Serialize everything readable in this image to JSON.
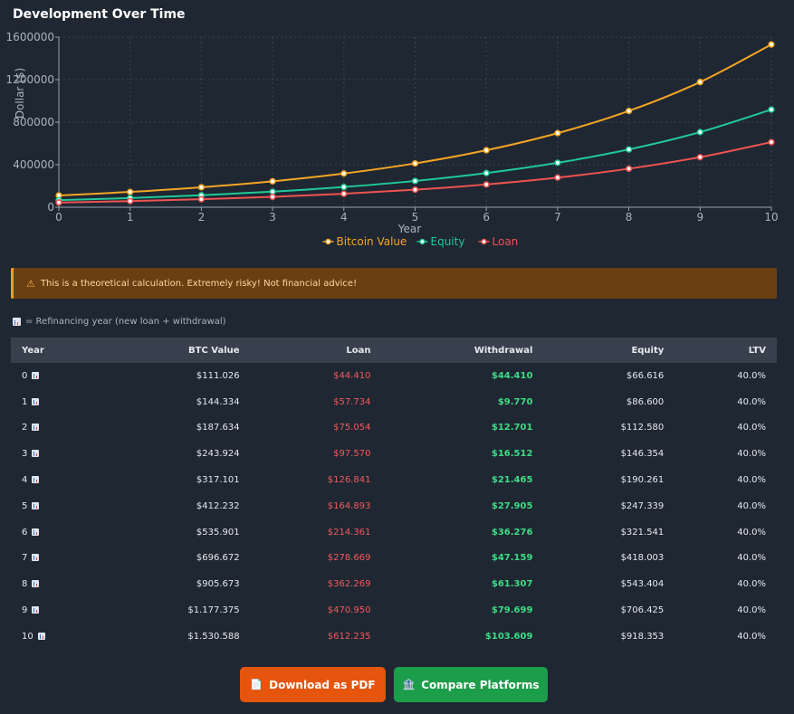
{
  "header": {
    "title": "Development Over Time"
  },
  "chart_data": {
    "type": "line",
    "title": "",
    "xlabel": "Year",
    "ylabel": "Dollar ($)",
    "x": [
      0,
      1,
      2,
      3,
      4,
      5,
      6,
      7,
      8,
      9,
      10
    ],
    "xlim": [
      0,
      10
    ],
    "ylim": [
      0,
      1600000
    ],
    "yticks": [
      0,
      400000,
      800000,
      1200000,
      1600000
    ],
    "ytick_labels": [
      "0",
      "400000",
      "800000",
      "1200000",
      "1600000"
    ],
    "grid": true,
    "legend": "bottom-center",
    "series": [
      {
        "name": "Bitcoin Value",
        "color": "#f5a623",
        "values": [
          111026,
          144334,
          187634,
          243924,
          317101,
          412232,
          535901,
          696672,
          905673,
          1177375,
          1530588
        ]
      },
      {
        "name": "Equity",
        "color": "#20c997",
        "values": [
          66616,
          86600,
          112580,
          146354,
          190261,
          247339,
          321541,
          418003,
          543404,
          706425,
          918353
        ]
      },
      {
        "name": "Loan",
        "color": "#ef5350",
        "values": [
          44410,
          57734,
          75054,
          97570,
          126841,
          164893,
          214361,
          278669,
          362269,
          470950,
          612235
        ]
      }
    ]
  },
  "warning": {
    "icon": "warning-icon",
    "text": "This is a theoretical calculation. Extremely risky! Not financial advice!"
  },
  "legend_note": {
    "icon": "chart-icon",
    "text": "= Refinancing year (new loan + withdrawal)"
  },
  "table": {
    "headers": [
      "Year",
      "BTC Value",
      "Loan",
      "Withdrawal",
      "Equity",
      "LTV"
    ],
    "rows": [
      [
        "0",
        "$111.026",
        "$44.410",
        "$44.410",
        "$66.616",
        "40.0%"
      ],
      [
        "1",
        "$144.334",
        "$57.734",
        "$9.770",
        "$86.600",
        "40.0%"
      ],
      [
        "2",
        "$187.634",
        "$75.054",
        "$12.701",
        "$112.580",
        "40.0%"
      ],
      [
        "3",
        "$243.924",
        "$97.570",
        "$16.512",
        "$146.354",
        "40.0%"
      ],
      [
        "4",
        "$317.101",
        "$126.841",
        "$21.465",
        "$190.261",
        "40.0%"
      ],
      [
        "5",
        "$412.232",
        "$164.893",
        "$27.905",
        "$247.339",
        "40.0%"
      ],
      [
        "6",
        "$535.901",
        "$214.361",
        "$36.276",
        "$321.541",
        "40.0%"
      ],
      [
        "7",
        "$696.672",
        "$278.669",
        "$47.159",
        "$418.003",
        "40.0%"
      ],
      [
        "8",
        "$905.673",
        "$362.269",
        "$61.307",
        "$543.404",
        "40.0%"
      ],
      [
        "9",
        "$1.177.375",
        "$470.950",
        "$79.699",
        "$706.425",
        "40.0%"
      ],
      [
        "10",
        "$1.530.588",
        "$612.235",
        "$103.609",
        "$918.353",
        "40.0%"
      ]
    ]
  },
  "buttons": {
    "pdf": {
      "label": "Download as PDF",
      "icon": "document-icon"
    },
    "compare": {
      "label": "Compare Platforms",
      "icon": "bank-icon"
    }
  }
}
